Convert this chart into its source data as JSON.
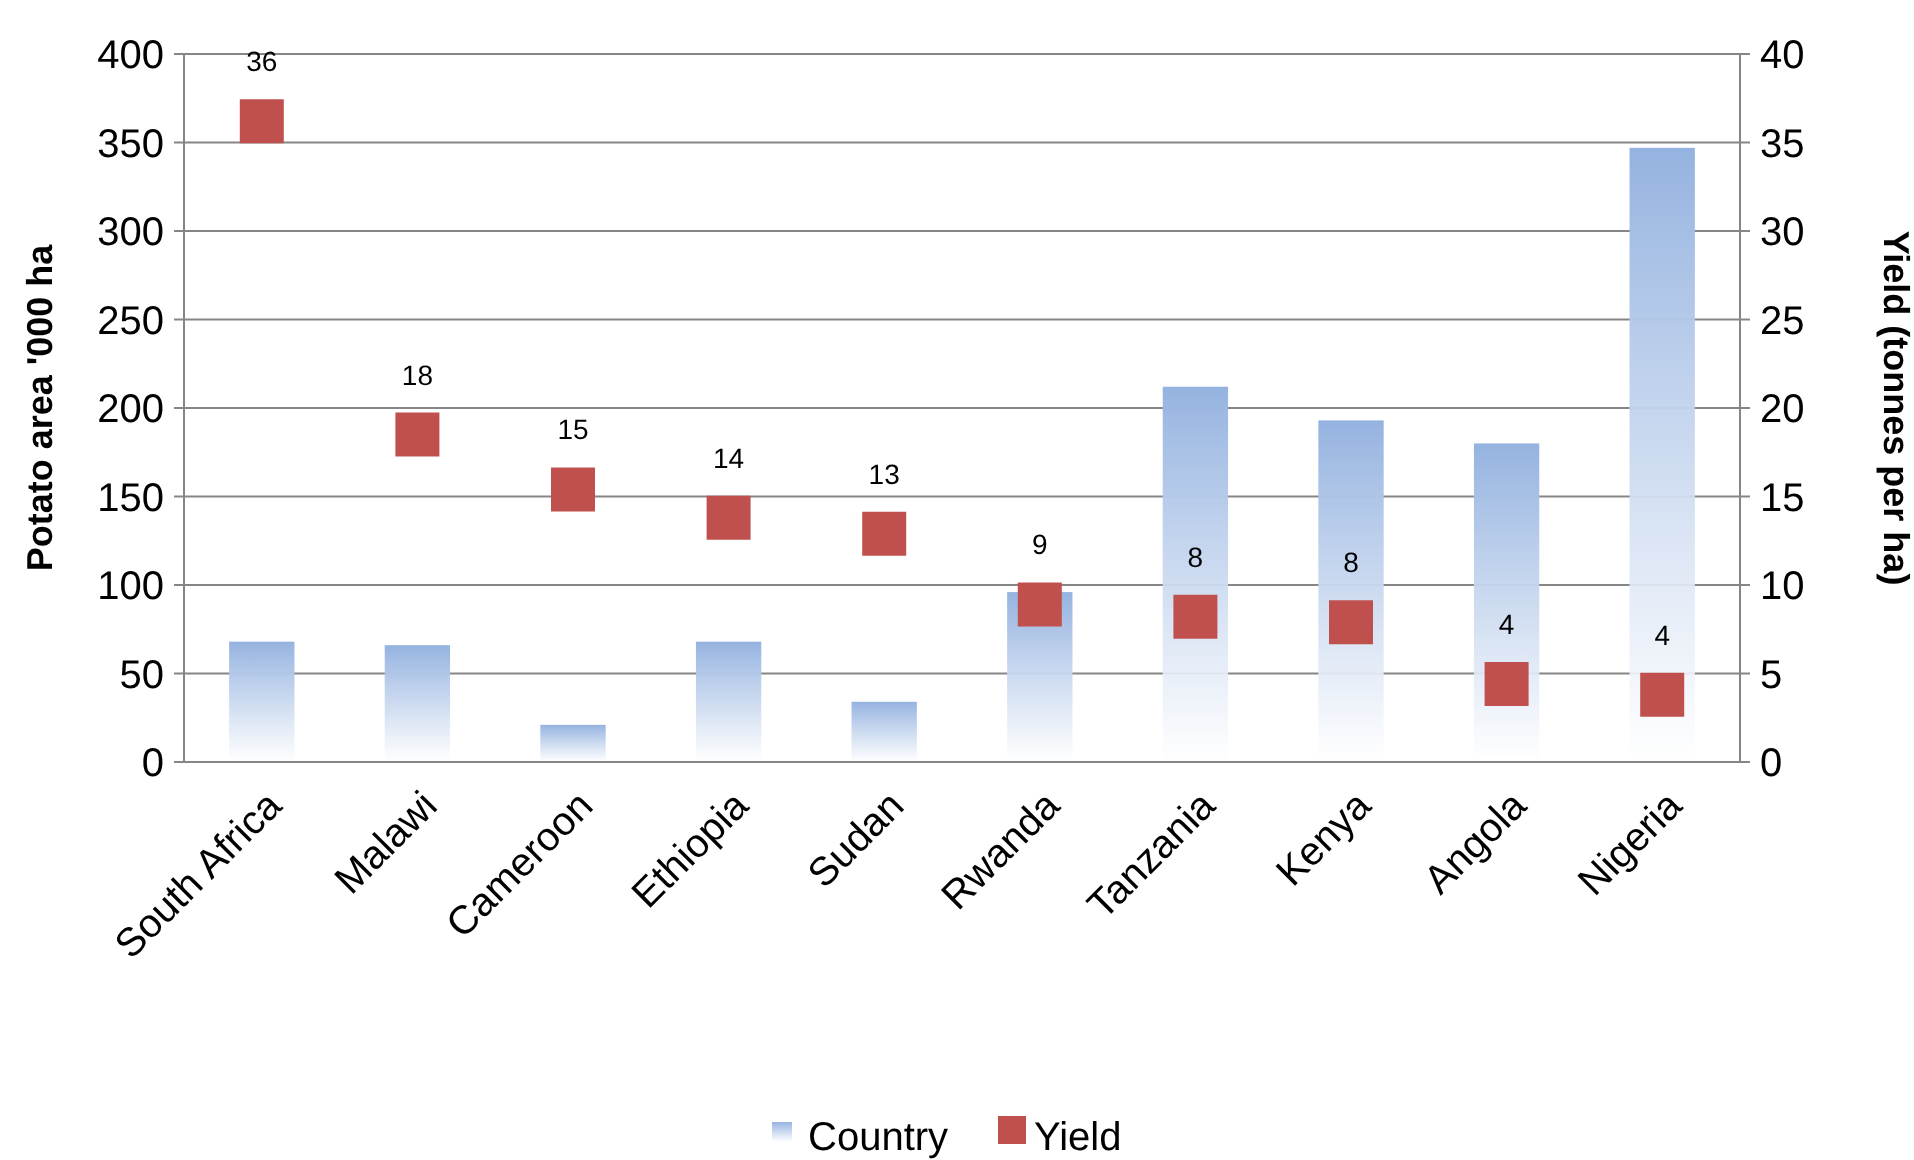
{
  "chart_data": {
    "type": "bar",
    "ylabel": "Potato area '000 ha",
    "y2label": "Yield (tonnes per ha)",
    "categories": [
      "South Africa",
      "Malawi",
      "Cameroon",
      "Ethiopia",
      "Sudan",
      "Rwanda",
      "Tanzania",
      "Kenya",
      "Angola",
      "Nigeria"
    ],
    "ylim": [
      0,
      400
    ],
    "yticks": [
      0,
      50,
      100,
      150,
      200,
      250,
      300,
      350,
      400
    ],
    "y2lim": [
      0,
      40
    ],
    "y2ticks": [
      0,
      5,
      10,
      15,
      20,
      25,
      30,
      35,
      40
    ],
    "grid": "y",
    "legend": "bottom",
    "marker": "square",
    "series": [
      {
        "name": "Country",
        "color": "#95b3e0",
        "values": [
          68,
          66,
          21,
          68,
          34,
          96,
          212,
          193,
          180,
          347
        ]
      },
      {
        "name": "Yield",
        "type": "scatter",
        "axis": "y2",
        "color": "#c0504d",
        "values": [
          36.2,
          18.5,
          15.4,
          13.8,
          12.9,
          8.9,
          8.2,
          7.9,
          4.4,
          3.8
        ],
        "value_labels": [
          "36",
          "18",
          "15",
          "14",
          "13",
          "9",
          "8",
          "8",
          "4",
          "4"
        ]
      }
    ]
  }
}
